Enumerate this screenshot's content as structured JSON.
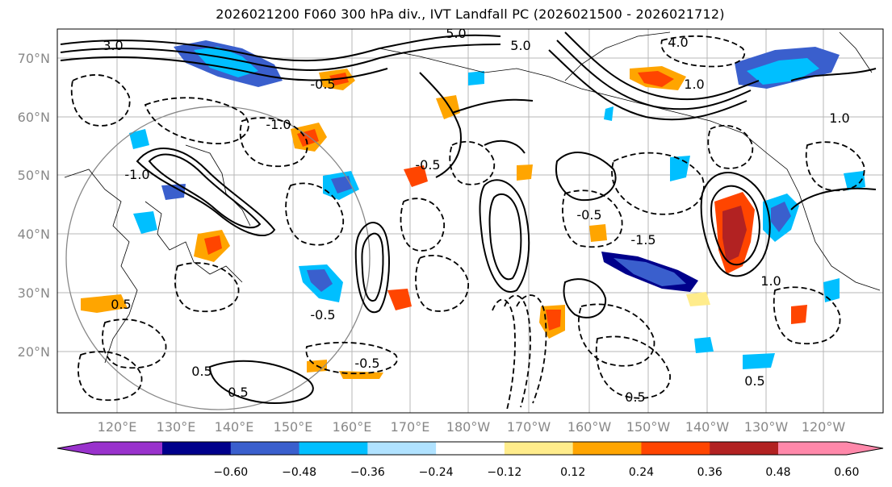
{
  "title": "2026021200 F060 300 hPa div., IVT Landfall PC (2026021500 - 2026021712)",
  "map": {
    "lat_labels": [
      "70°N",
      "60°N",
      "50°N",
      "40°N",
      "30°N",
      "20°N"
    ],
    "lon_labels": [
      "120°E",
      "130°E",
      "140°E",
      "150°E",
      "160°E",
      "170°E",
      "180°W",
      "170°W",
      "160°W",
      "150°W",
      "140°W",
      "130°W",
      "120°W"
    ],
    "contour_labels": [
      {
        "text": "5.0"
      },
      {
        "text": "5.0"
      },
      {
        "text": "4.0"
      },
      {
        "text": "3.0"
      },
      {
        "text": "1.0"
      },
      {
        "text": "-1.0"
      },
      {
        "text": "-0.5"
      },
      {
        "text": "-0.5"
      },
      {
        "text": "-1.5"
      },
      {
        "text": "1.0"
      },
      {
        "text": "-0.5"
      },
      {
        "text": "0.5"
      },
      {
        "text": "0.5"
      },
      {
        "text": "-1.0"
      },
      {
        "text": "0.5"
      },
      {
        "text": "-0.5"
      },
      {
        "text": "1.0"
      },
      {
        "text": "-0.5"
      },
      {
        "text": "0.5"
      },
      {
        "text": "0.5"
      }
    ]
  },
  "colorbar": {
    "ticks": [
      "−0.60",
      "−0.48",
      "−0.36",
      "−0.24",
      "−0.12",
      "0.12",
      "0.24",
      "0.36",
      "0.48",
      "0.60"
    ],
    "colors": [
      "#9932cc",
      "#00008b",
      "#3a5fcd",
      "#00bfff",
      "#b0e2ff",
      "#ffffff",
      "#ffec8b",
      "#ffa500",
      "#ff4500",
      "#b22222",
      "#ff88aa"
    ]
  }
}
